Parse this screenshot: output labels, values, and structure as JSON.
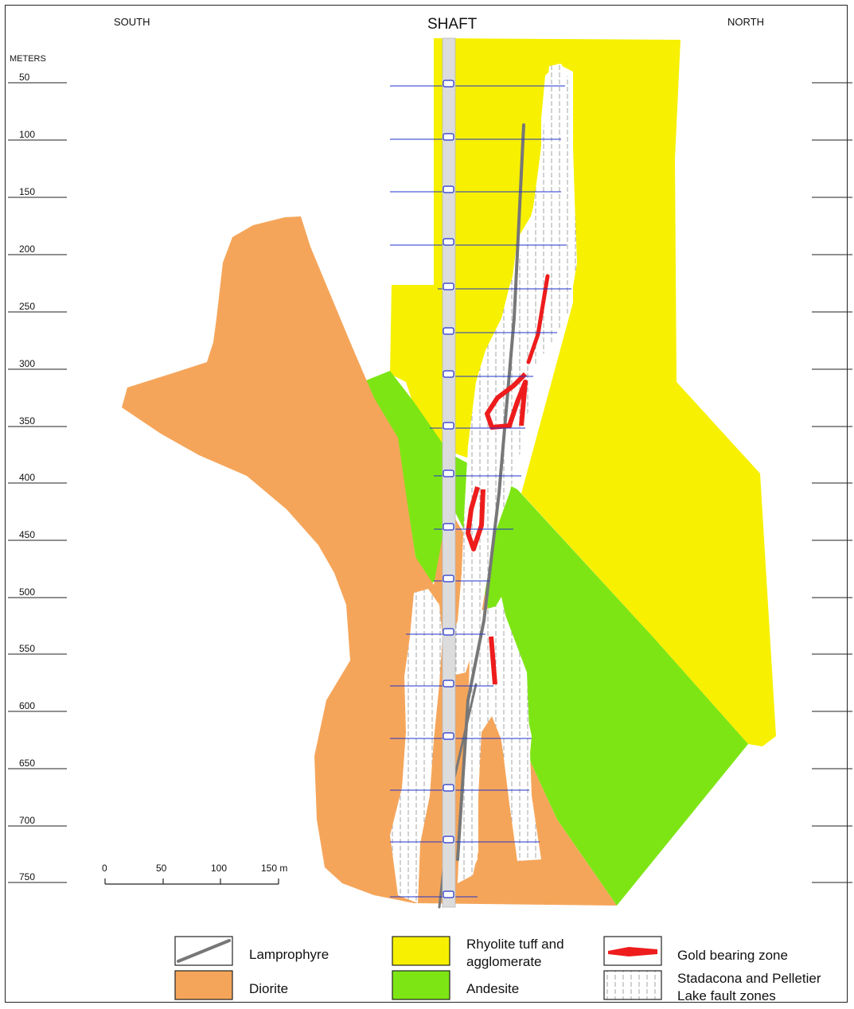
{
  "directions": {
    "south": "SOUTH",
    "north": "NORTH"
  },
  "shaft_label": "SHAFT",
  "depth_axis": {
    "unit_label": "METERS",
    "ticks": [
      "50",
      "100",
      "150",
      "200",
      "250",
      "300",
      "350",
      "400",
      "450",
      "500",
      "550",
      "600",
      "650",
      "700",
      "750"
    ]
  },
  "scale_bar": {
    "ticks": [
      "0",
      "50",
      "100",
      "150 m"
    ]
  },
  "legend": {
    "lamprophyre": "Lamprophyre",
    "diorite": "Diorite",
    "rhyolite_line1": "Rhyolite tuff and",
    "rhyolite_line2": "agglomerate",
    "andesite": "Andesite",
    "gold": "Gold bearing zone",
    "fault_line1": "Stadacona and Pelletier",
    "fault_line2": "Lake fault zones"
  },
  "colors": {
    "diorite": "#f5a55a",
    "rhyolite": "#f7f000",
    "andesite": "#7ee515",
    "gold": "#ee1c1c",
    "shaft": "#dcdcdc",
    "level_line": "#2233cc",
    "lamprophyre": "#777777"
  }
}
